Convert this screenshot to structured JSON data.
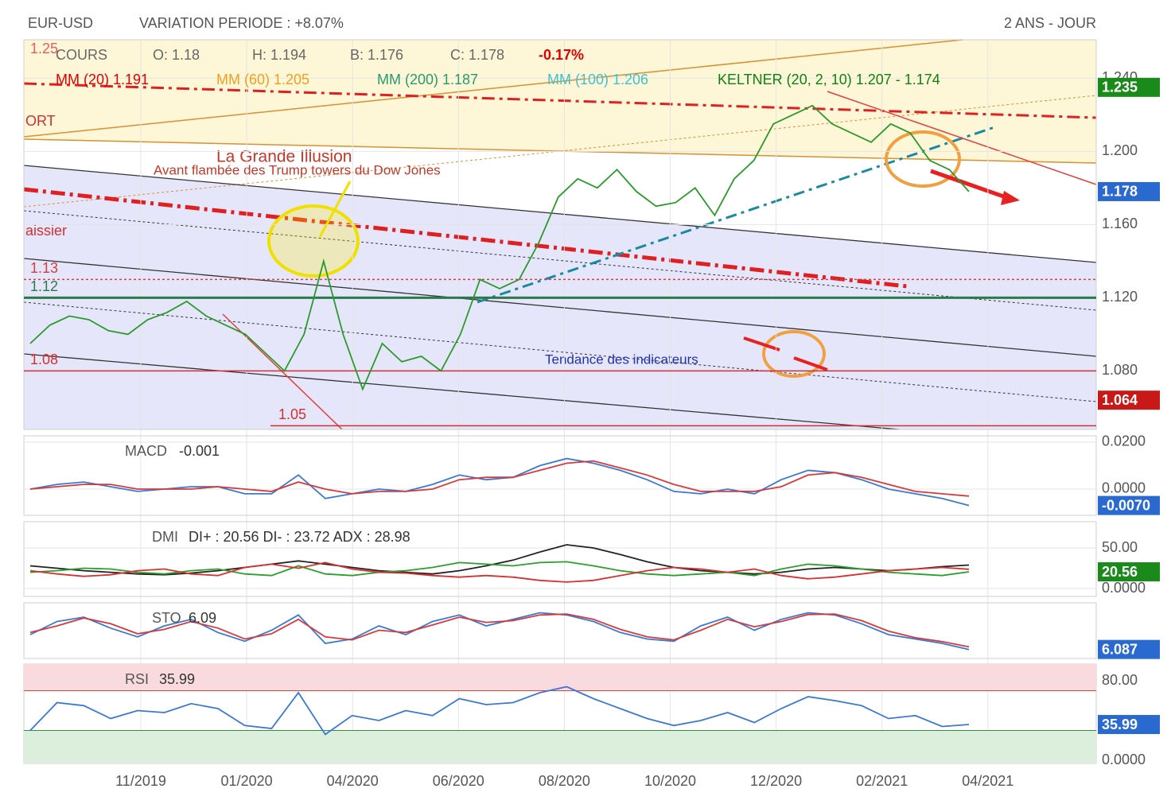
{
  "header": {
    "symbol": "EUR-USD",
    "variation": "VARIATION PERIODE : +8.07%",
    "period": "2 ANS - JOUR"
  },
  "time_axis": {
    "labels": [
      "11/2019",
      "01/2020",
      "04/2020",
      "06/2020",
      "08/2020",
      "10/2020",
      "12/2020",
      "02/2021",
      "04/2021"
    ]
  },
  "chart_data": [
    {
      "type": "line",
      "legend_row1": [
        {
          "text": "COURS",
          "color": "#666666"
        },
        {
          "text": "O: 1.18",
          "color": "#666666"
        },
        {
          "text": "H: 1.194",
          "color": "#666666"
        },
        {
          "text": "B: 1.176",
          "color": "#666666"
        },
        {
          "text": "C: 1.178",
          "color": "#666666"
        },
        {
          "text": "-0.17%",
          "color": "#e00000"
        }
      ],
      "legend_row2": [
        {
          "text": "MM (20) 1.191",
          "color": "#e00000"
        },
        {
          "text": "MM (60) 1.205",
          "color": "#f0a020"
        },
        {
          "text": "MM (200) 1.187",
          "color": "#2a9a6a"
        },
        {
          "text": "MM (100) 1.206",
          "color": "#40c0d0"
        },
        {
          "text": "KELTNER (20, 2, 10) 1.207 - 1.174",
          "color": "#108010"
        }
      ],
      "annotations": [
        "La Grande Illusion",
        "Avant flambée des Trump towers du Dow Jones",
        "Tendance des indicateurs",
        "ORT",
        "aissier"
      ],
      "levels": [
        {
          "value": 1.25,
          "color": "#e06060",
          "style": "none"
        },
        {
          "value": 1.13,
          "color": "#d04040",
          "style": "dotted"
        },
        {
          "value": 1.12,
          "color": "#2a7a4a",
          "style": "solid"
        },
        {
          "value": 1.08,
          "color": "#d03030",
          "style": "solid"
        },
        {
          "value": 1.05,
          "color": "#d03030",
          "style": "solid"
        }
      ],
      "series": [
        {
          "color": "#2a9a2a",
          "values": [
            1.095,
            1.105,
            1.11,
            1.108,
            1.102,
            1.1,
            1.108,
            1.112,
            1.118,
            1.11,
            1.105,
            1.1,
            1.09,
            1.08,
            1.1,
            1.14,
            1.1,
            1.07,
            1.095,
            1.085,
            1.088,
            1.08,
            1.1,
            1.13,
            1.125,
            1.13,
            1.15,
            1.175,
            1.185,
            1.18,
            1.19,
            1.178,
            1.17,
            1.172,
            1.18,
            1.165,
            1.185,
            1.195,
            1.215,
            1.22,
            1.225,
            1.215,
            1.21,
            1.205,
            1.215,
            1.21,
            1.195,
            1.19,
            1.178
          ]
        }
      ],
      "ylim": [
        1.048,
        1.261
      ],
      "yticks": [
        {
          "value": 1.24,
          "label": "1.240"
        },
        {
          "value": 1.2,
          "label": "1.200"
        },
        {
          "value": 1.16,
          "label": "1.160"
        },
        {
          "value": 1.12,
          "label": "1.120"
        },
        {
          "value": 1.08,
          "label": "1.080"
        }
      ],
      "badges": [
        {
          "value": 1.235,
          "color": "#1a8a1a"
        },
        {
          "value": 1.178,
          "color": "#2a6ad0"
        },
        {
          "value": 1.064,
          "color": "#c81818"
        }
      ]
    },
    {
      "type": "line",
      "label": "MACD",
      "readout": "-0.001",
      "series": [
        {
          "color": "#3a78d8",
          "values": [
            0.0,
            0.002,
            0.003,
            0.001,
            -0.001,
            0.0,
            0.001,
            0.001,
            -0.002,
            -0.002,
            0.006,
            -0.004,
            -0.002,
            0.0,
            -0.001,
            0.002,
            0.006,
            0.004,
            0.005,
            0.01,
            0.013,
            0.011,
            0.008,
            0.004,
            -0.001,
            -0.002,
            0.0,
            -0.002,
            0.004,
            0.008,
            0.007,
            0.004,
            0.0,
            -0.002,
            -0.004,
            -0.007
          ]
        },
        {
          "color": "#d83a3a",
          "values": [
            0.0,
            0.001,
            0.002,
            0.002,
            0.0,
            0.0,
            0.0,
            0.001,
            0.0,
            -0.001,
            0.003,
            0.0,
            -0.002,
            -0.001,
            -0.001,
            0.0,
            0.004,
            0.005,
            0.005,
            0.008,
            0.011,
            0.012,
            0.009,
            0.006,
            0.002,
            -0.001,
            -0.001,
            -0.001,
            0.001,
            0.006,
            0.007,
            0.005,
            0.002,
            -0.001,
            -0.002,
            -0.003
          ]
        }
      ],
      "ylim": [
        -0.0112,
        0.0227
      ],
      "yticks": [
        {
          "value": 0.02,
          "label": "0.0200"
        },
        {
          "value": 0,
          "label": "0.0000"
        }
      ],
      "badges": [
        {
          "value": -0.007,
          "label": "-0.0070",
          "color": "#2a6ad0"
        }
      ]
    },
    {
      "type": "line",
      "label": "DMI",
      "readout": "DI+ : 20.56 DI- : 23.72 ADX : 28.98",
      "series": [
        {
          "color": "#222222",
          "values": [
            28,
            25,
            22,
            20,
            18,
            17,
            19,
            22,
            26,
            30,
            34,
            30,
            26,
            22,
            20,
            18,
            22,
            28,
            35,
            45,
            54,
            50,
            42,
            33,
            26,
            22,
            20,
            18,
            20,
            24,
            26,
            24,
            22,
            24,
            27,
            28.98
          ]
        },
        {
          "color": "#2aa02a",
          "values": [
            20,
            22,
            25,
            24,
            20,
            18,
            22,
            24,
            18,
            16,
            28,
            18,
            16,
            20,
            22,
            26,
            32,
            30,
            28,
            32,
            33,
            28,
            22,
            18,
            16,
            18,
            20,
            16,
            24,
            30,
            28,
            24,
            20,
            18,
            16,
            20.56
          ]
        },
        {
          "color": "#d83030",
          "values": [
            22,
            18,
            15,
            17,
            22,
            24,
            18,
            16,
            26,
            30,
            25,
            32,
            24,
            20,
            19,
            16,
            14,
            16,
            14,
            10,
            8,
            10,
            16,
            22,
            26,
            24,
            20,
            24,
            16,
            12,
            14,
            18,
            22,
            24,
            26,
            23.72
          ]
        }
      ],
      "ylim": [
        -9.8,
        82.4
      ],
      "yticks": [
        {
          "value": 50,
          "label": "50.00"
        },
        {
          "value": 0,
          "label": "0.0000"
        }
      ],
      "badges": [
        {
          "value": 20.56,
          "color": "#1a8a1a"
        }
      ]
    },
    {
      "type": "line",
      "label": "STO",
      "readout": "6.09",
      "series": [
        {
          "color": "#3a78d8",
          "values": [
            40,
            70,
            80,
            55,
            35,
            60,
            75,
            45,
            25,
            50,
            85,
            20,
            30,
            60,
            40,
            70,
            85,
            60,
            75,
            90,
            85,
            70,
            45,
            30,
            25,
            60,
            80,
            50,
            75,
            90,
            85,
            65,
            40,
            30,
            20,
            6.09
          ]
        },
        {
          "color": "#d83a3a",
          "values": [
            45,
            60,
            78,
            65,
            42,
            52,
            70,
            55,
            30,
            42,
            75,
            35,
            28,
            50,
            45,
            62,
            80,
            68,
            72,
            85,
            87,
            75,
            52,
            35,
            28,
            50,
            75,
            58,
            70,
            86,
            87,
            72,
            48,
            33,
            24,
            12
          ]
        }
      ],
      "ylim": [
        0,
        100
      ],
      "badges": [
        {
          "value": 6.087,
          "color": "#2a6ad0"
        }
      ]
    },
    {
      "type": "line",
      "label": "RSI",
      "readout": "35.99",
      "overbought": 70,
      "oversold": 30,
      "series": [
        {
          "color": "#3a78d8",
          "values": [
            30,
            58,
            55,
            42,
            50,
            48,
            57,
            52,
            35,
            32,
            68,
            26,
            45,
            40,
            50,
            45,
            62,
            56,
            58,
            68,
            74,
            62,
            52,
            42,
            35,
            40,
            48,
            38,
            52,
            64,
            60,
            55,
            42,
            45,
            34,
            35.99
          ]
        }
      ],
      "ylim": [
        -3.2,
        96.8
      ],
      "yticks": [
        {
          "value": 80,
          "label": "80.00"
        },
        {
          "value": 0,
          "label": "0.0000"
        }
      ],
      "badges": [
        {
          "value": 35.99,
          "color": "#2a6ad0"
        }
      ]
    }
  ]
}
